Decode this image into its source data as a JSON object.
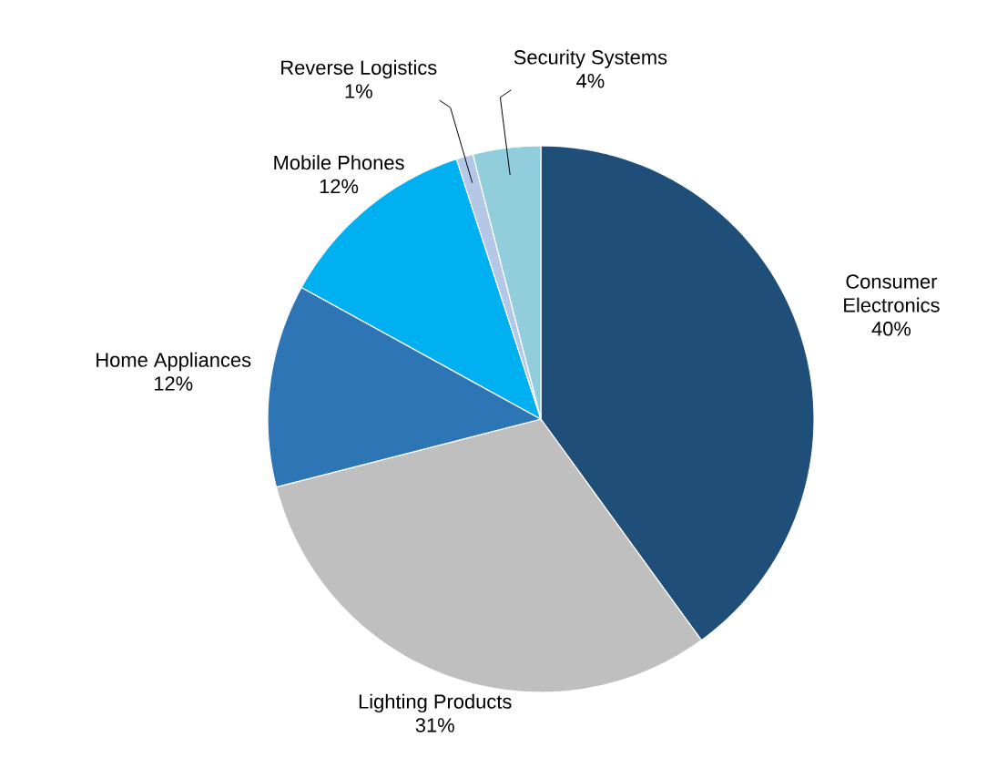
{
  "chart_data": {
    "type": "pie",
    "categories": [
      "Consumer Electronics",
      "Lighting Products",
      "Home Appliances",
      "Mobile Phones",
      "Reverse Logistics",
      "Security Systems"
    ],
    "values": [
      40,
      31,
      12,
      12,
      1,
      4
    ],
    "colors": [
      "#1f4e79",
      "#bfbfbf",
      "#2e75b6",
      "#00b0f0",
      "#b4c7e7",
      "#92cddc"
    ],
    "value_labels": [
      "40%",
      "31%",
      "12%",
      "12%",
      "1%",
      "4%"
    ]
  }
}
